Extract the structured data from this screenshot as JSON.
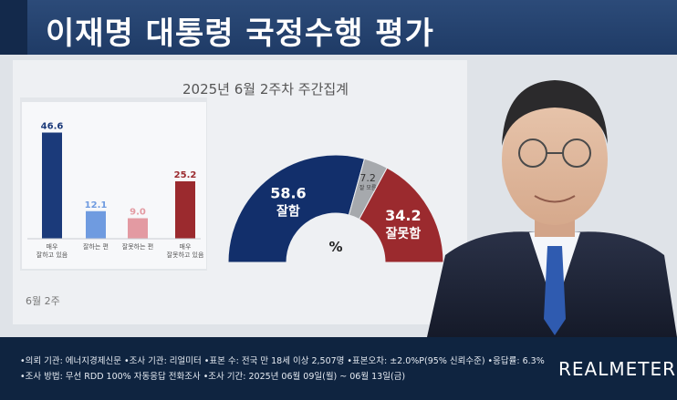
{
  "header": {
    "title": "이재명 대통령 국정수행 평가"
  },
  "chart_header": {
    "period": "2025년 6월 2주차 주간집계"
  },
  "chart_data": [
    {
      "type": "bar",
      "categories": [
        "매우\n잘하고 있음",
        "잘하는 편",
        "잘못하는 편",
        "매우\n잘못하고 있음"
      ],
      "values": [
        46.6,
        12.1,
        9.0,
        25.2
      ],
      "value_labels": [
        "46.6",
        "12.1",
        "9.0",
        "25.2"
      ],
      "colors": [
        "#1b3a7a",
        "#6f9be0",
        "#e39aa2",
        "#9b2a2e"
      ],
      "xlabel": "6월 2주",
      "ylim": [
        0,
        50
      ]
    },
    {
      "type": "pie",
      "style": "half-donut",
      "slices": [
        {
          "label": "잘함",
          "value": 58.6,
          "value_label": "58.6",
          "color": "#122f6b"
        },
        {
          "label": "잘 모름",
          "value": 7.2,
          "value_label": "7.2",
          "color": "#a6a9ad"
        },
        {
          "label": "잘못함",
          "value": 34.2,
          "value_label": "34.2",
          "color": "#9b2a2e"
        }
      ],
      "center_label": "%"
    }
  ],
  "footer": {
    "line1": "•의뢰 기관: 에너지경제신문 •조사 기관: 리얼미터 •표본 수: 전국 만 18세 이상 2,507명 •표본오차: ±2.0%P(95% 신뢰수준) •응답률: 6.3%",
    "line2": "•조사 방법: 무선 RDD 100% 자동응답 전화조사 •조사 기간: 2025년 06월 09일(월) ~ 06월 13일(금)",
    "logo": "REALMETER"
  }
}
